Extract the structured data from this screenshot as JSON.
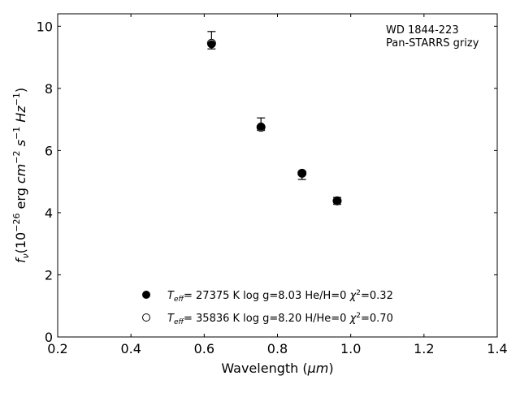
{
  "chart_data": {
    "type": "scatter",
    "xlabel": "Wavelength",
    "xlabel_unit": "μm",
    "ylabel": {
      "f": "f",
      "nu": "ν",
      "prefix": "(10",
      "exp1": "−26",
      "erg": " erg ",
      "cm": "cm",
      "exp2": "−2",
      "s": " s",
      "exp3": "−1",
      "hz": " Hz",
      "exp4": "−1",
      "close": ")"
    },
    "xlim": [
      0.2,
      1.4
    ],
    "ylim": [
      0,
      10.4
    ],
    "xticks": [
      0.2,
      0.4,
      0.6,
      0.8,
      1.0,
      1.2,
      1.4
    ],
    "xtick_labels": [
      "0.2",
      "0.4",
      "0.6",
      "0.8",
      "1.0",
      "1.2",
      "1.4"
    ],
    "yticks": [
      0,
      2,
      4,
      6,
      8,
      10
    ],
    "ytick_labels": [
      "0",
      "2",
      "4",
      "6",
      "8",
      "10"
    ],
    "annotations": [
      "WD 1844-223",
      "Pan-STARRS grizy"
    ],
    "observed": {
      "x": [
        0.62,
        0.755,
        0.867,
        0.963
      ],
      "y": [
        9.55,
        6.85,
        5.2,
        4.38
      ],
      "yerr": [
        0.28,
        0.2,
        0.13,
        0.11
      ]
    },
    "series": [
      {
        "name": "Teff= 27375 K  log g=8.03  He/H=0  χ2=0.32",
        "marker": "filled-circle",
        "x": [
          0.62,
          0.755,
          0.867,
          0.963
        ],
        "y": [
          9.42,
          6.77,
          5.27,
          4.39
        ]
      },
      {
        "name": "Teff= 35836 K  log g=8.20  H/He=0  χ2=0.70",
        "marker": "open-circle",
        "x": [
          0.62,
          0.755,
          0.867,
          0.963
        ],
        "y": [
          9.45,
          6.75,
          5.27,
          4.38
        ]
      }
    ],
    "legend": [
      {
        "marker": "filled-circle",
        "T": "T",
        "eff": "eff",
        "teff_val": "= 27375 K  log g=8.03  He/H=0  ",
        "chi": "χ",
        "sq": "2",
        "chi_val": "=0.32"
      },
      {
        "marker": "open-circle",
        "T": "T",
        "eff": "eff",
        "teff_val": "= 35836 K  log g=8.20  H/He=0  ",
        "chi": "χ",
        "sq": "2",
        "chi_val": "=0.70"
      }
    ],
    "legend_position": "lower-center",
    "grid": false
  }
}
